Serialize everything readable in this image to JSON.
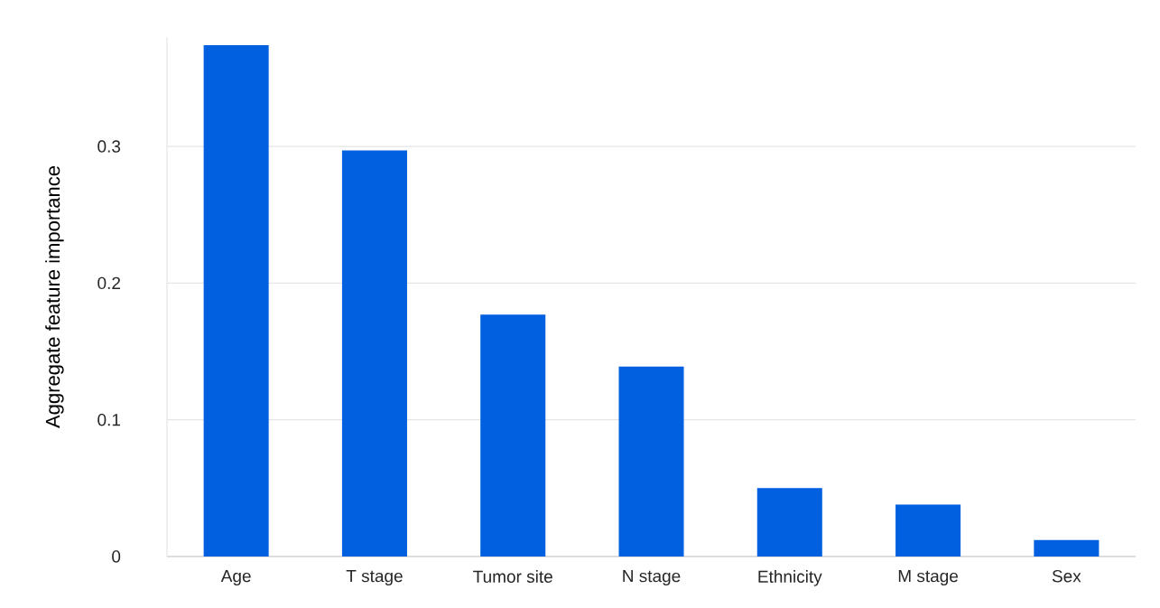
{
  "chart_data": {
    "type": "bar",
    "ylabel": "Aggregate feature importance",
    "categories": [
      "Age",
      "T stage",
      "Tumor site",
      "N stage",
      "Ethnicity",
      "M stage",
      "Sex"
    ],
    "values": [
      0.374,
      0.297,
      0.177,
      0.139,
      0.05,
      0.038,
      0.012
    ],
    "color": "#0060df",
    "ylim": [
      0,
      0.38
    ],
    "yticks": [
      0,
      0.1,
      0.2,
      0.3
    ],
    "grid": "y"
  }
}
